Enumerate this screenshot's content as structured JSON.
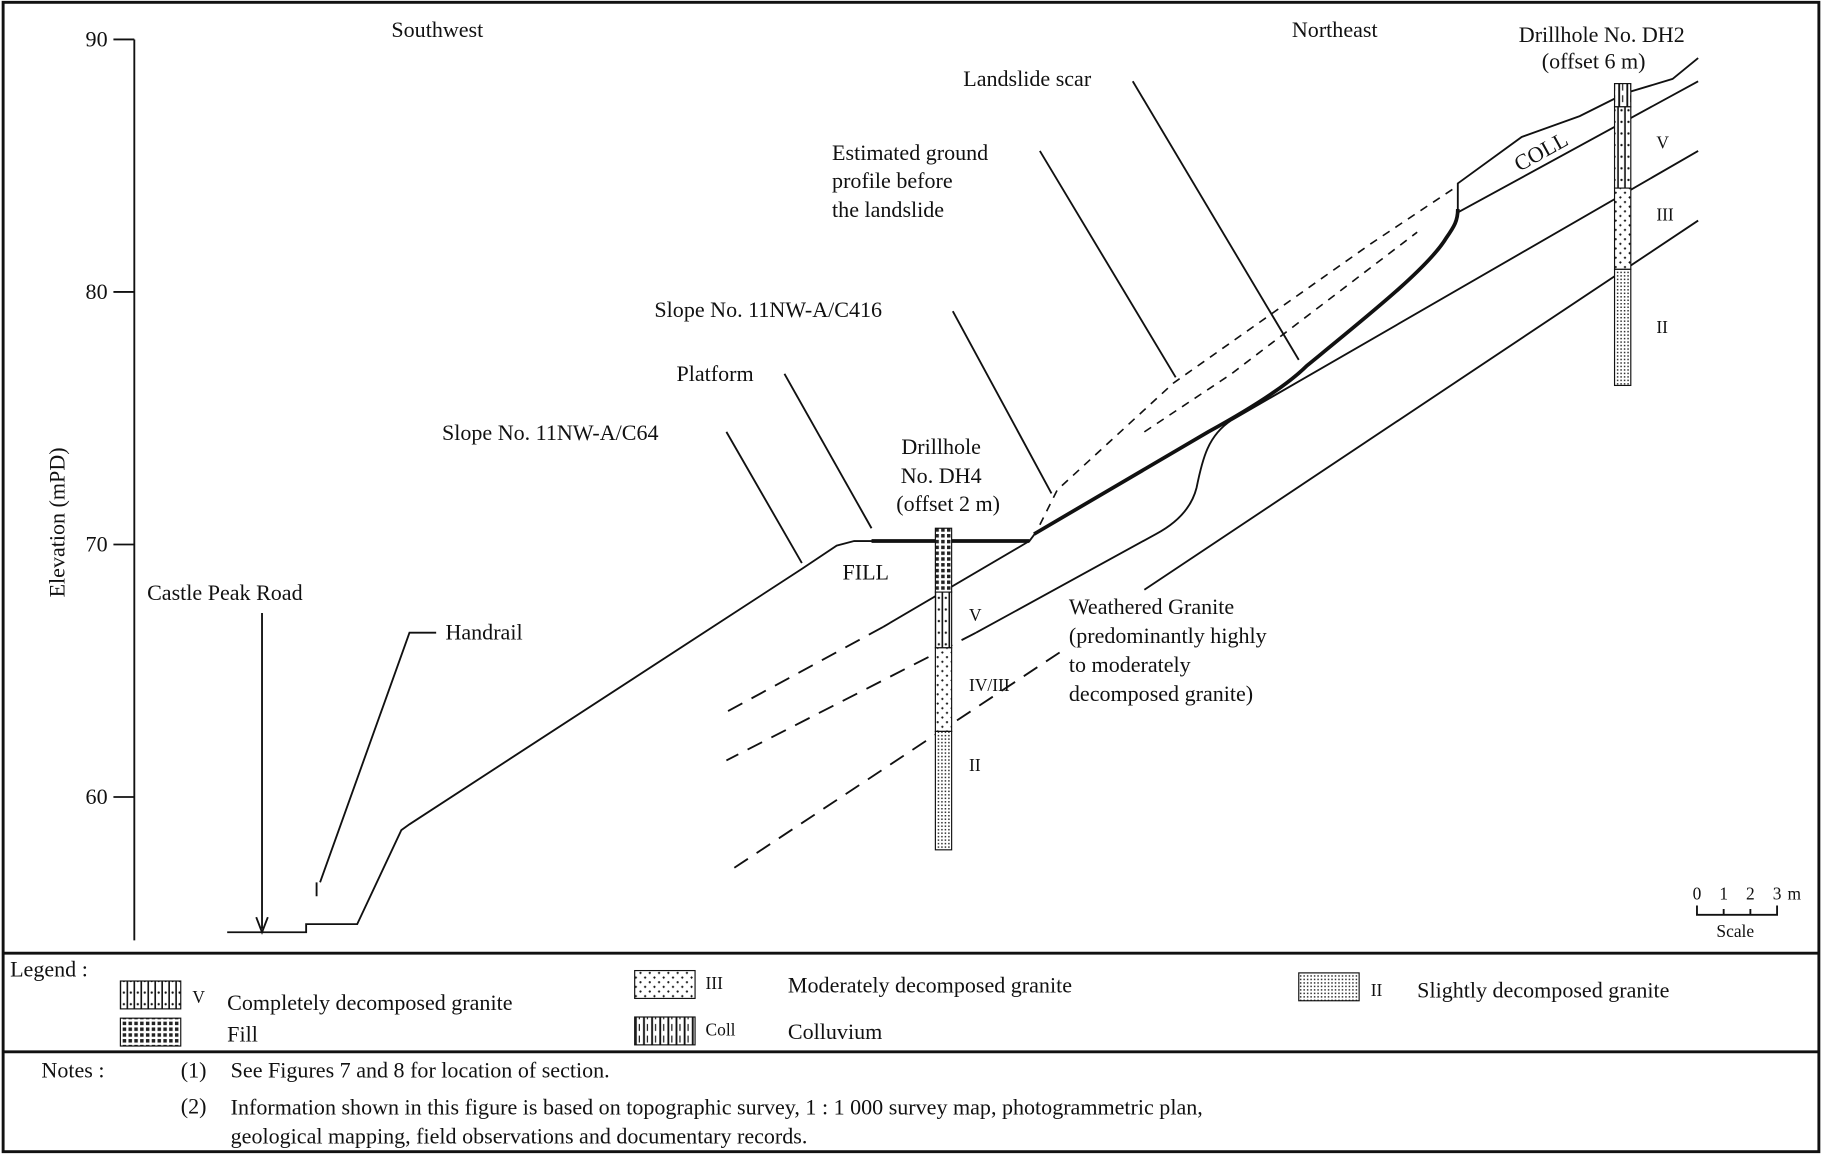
{
  "axis": {
    "label": "Elevation (mPD)",
    "ticks": [
      90,
      80,
      70,
      60
    ]
  },
  "orientation": {
    "left": "Southwest",
    "right": "Northeast"
  },
  "labels": {
    "castle_peak_road": "Castle Peak Road",
    "handrail": "Handrail",
    "slope_c64": "Slope No. 11NW-A/C64",
    "platform": "Platform",
    "drillhole_dh4": [
      "Drillhole",
      "No. DH4",
      "(offset 2 m)"
    ],
    "slope_c416": "Slope No. 11NW-A/C416",
    "estimated_profile": [
      "Estimated ground",
      "profile before",
      "the landslide"
    ],
    "landslide_scar": "Landslide scar",
    "drillhole_dh2": [
      "Drillhole No. DH2",
      "(offset 6 m)"
    ],
    "fill": "FILL",
    "coll": "COLL",
    "weathered_granite": [
      "Weathered Granite",
      "(predominantly highly",
      "to moderately",
      "decomposed granite)"
    ]
  },
  "zones": {
    "dh4": [
      "V",
      "IV/III",
      "II"
    ],
    "dh2": [
      "V",
      "III",
      "II"
    ]
  },
  "scale": {
    "ticks": [
      0,
      1,
      2,
      3
    ],
    "unit": "m",
    "label": "Scale"
  },
  "legend": {
    "title": "Legend :",
    "items": [
      {
        "code": "V",
        "name": "Completely decomposed granite"
      },
      {
        "name": "Fill"
      },
      {
        "code": "III",
        "name": "Moderately decomposed granite"
      },
      {
        "code": "Coll",
        "name": "Colluvium"
      },
      {
        "code": "II",
        "name": "Slightly decomposed granite"
      }
    ]
  },
  "notes": {
    "title": "Notes :",
    "items": [
      {
        "num": "(1)",
        "lines": [
          "See Figures 7 and 8 for location of section."
        ]
      },
      {
        "num": "(2)",
        "lines": [
          "Information shown in this figure is based on topographic survey, 1 : 1 000 survey map, photogrammetric plan,",
          "geological mapping, field observations and documentary records."
        ]
      }
    ]
  }
}
